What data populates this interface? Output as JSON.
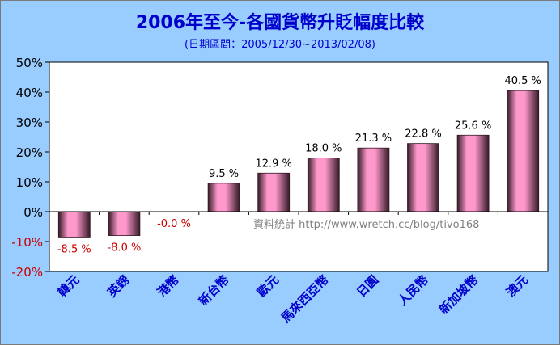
{
  "chart_data": {
    "type": "bar",
    "title": "2006年至今-各國貨幣升貶幅度比較",
    "subtitle": "(日期區間：2005/12/30~2013/02/08)",
    "categories": [
      "韓元",
      "英鎊",
      "港幣",
      "新台幣",
      "歐元",
      "馬來西亞幣",
      "日圓",
      "人民幣",
      "新加坡幣",
      "澳元"
    ],
    "values": [
      -8.5,
      -8.0,
      -0.0,
      9.5,
      12.9,
      18.0,
      21.3,
      22.8,
      25.6,
      40.5
    ],
    "data_labels": [
      "-8.5 %",
      "-8.0 %",
      "-0.0 %",
      "9.5 %",
      "12.9 %",
      "18.0 %",
      "21.3 %",
      "22.8 %",
      "25.6 %",
      "40.5 %"
    ],
    "y_ticks": [
      "-20%",
      "-10%",
      "0%",
      "10%",
      "20%",
      "30%",
      "40%",
      "50%"
    ],
    "ylim": [
      -20,
      50
    ],
    "xlabel": "",
    "ylabel": "",
    "grid": false,
    "legend": "none",
    "annotation": "資料統計 http://www.wretch.cc/blog/tivo168",
    "colors": {
      "background": "#99ccff",
      "plot_area": "#ffffff",
      "bar_fill": "#ff99cc",
      "bar_edge": "#331a26",
      "title": "#0000cc",
      "category_label": "#0000cc",
      "positive_label": "#000000",
      "negative_label": "#cc0000",
      "watermark": "#808080"
    }
  }
}
